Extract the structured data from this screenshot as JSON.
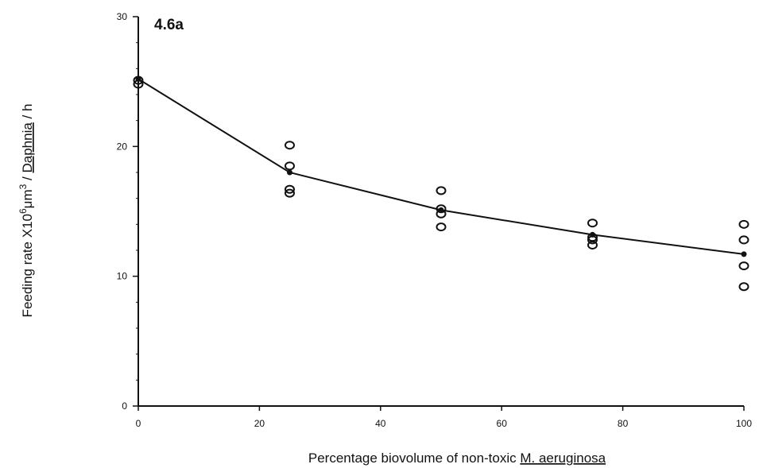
{
  "chart_data": {
    "type": "scatter",
    "panel_label": "4.6a",
    "xlabel": {
      "prefix": "Percentage biovolume of  non-toxic ",
      "underlined": "M. aeruginosa"
    },
    "ylabel": {
      "main": "Feeding rate X10",
      "exponent": "6",
      "unit_base": "μm",
      "unit_exponent": "3",
      "separator": " / ",
      "underlined": "Daphnia",
      "suffix": " / h"
    },
    "xlim": [
      0,
      100
    ],
    "ylim": [
      0,
      30
    ],
    "x_ticks": [
      0,
      20,
      40,
      60,
      80,
      100
    ],
    "y_ticks": [
      0,
      10,
      20,
      30
    ],
    "grid": false,
    "series": [
      {
        "marker": "open-circle",
        "points": [
          {
            "x": 0,
            "y": 25.1
          },
          {
            "x": 0,
            "y": 24.8
          },
          {
            "x": 25,
            "y": 20.1
          },
          {
            "x": 25,
            "y": 18.5
          },
          {
            "x": 25,
            "y": 16.7
          },
          {
            "x": 25,
            "y": 16.4
          },
          {
            "x": 50,
            "y": 16.6
          },
          {
            "x": 50,
            "y": 15.2
          },
          {
            "x": 50,
            "y": 14.8
          },
          {
            "x": 50,
            "y": 13.8
          },
          {
            "x": 75,
            "y": 14.1
          },
          {
            "x": 75,
            "y": 13.0
          },
          {
            "x": 75,
            "y": 12.8
          },
          {
            "x": 75,
            "y": 12.4
          },
          {
            "x": 100,
            "y": 14.0
          },
          {
            "x": 100,
            "y": 12.8
          },
          {
            "x": 100,
            "y": 10.8
          },
          {
            "x": 100,
            "y": 9.2
          }
        ]
      },
      {
        "marker": "filled-circle-line",
        "points": [
          {
            "x": 0,
            "y": 25.2
          },
          {
            "x": 25,
            "y": 18.0
          },
          {
            "x": 50,
            "y": 15.1
          },
          {
            "x": 75,
            "y": 13.2
          },
          {
            "x": 100,
            "y": 11.7
          }
        ]
      }
    ]
  }
}
